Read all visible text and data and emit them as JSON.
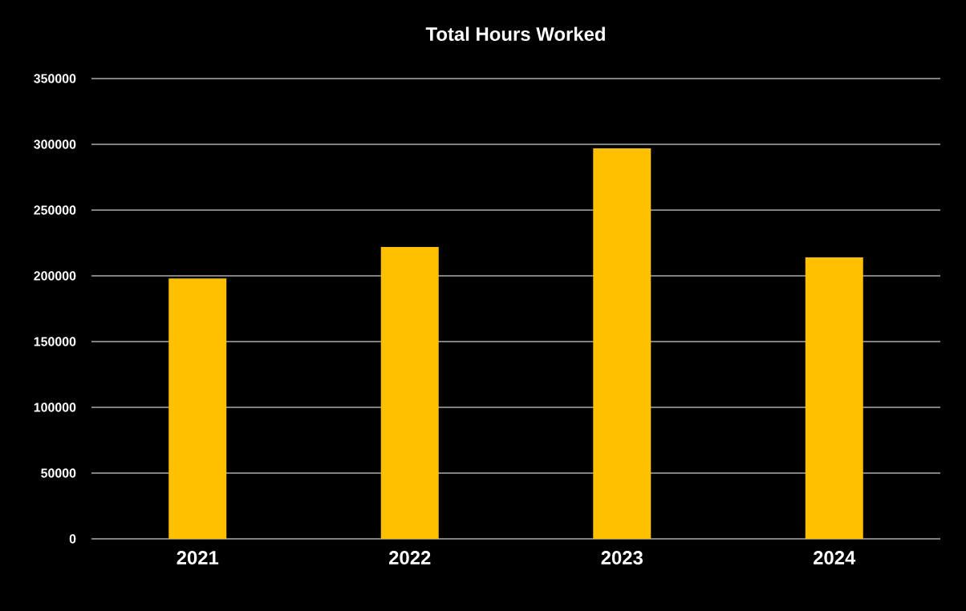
{
  "chart_data": {
    "type": "bar",
    "title": "Total Hours Worked",
    "categories": [
      "2021",
      "2022",
      "2023",
      "2024"
    ],
    "values": [
      198000,
      222000,
      297000,
      214000
    ],
    "color": "#ffc000",
    "ylim": [
      0,
      350000
    ],
    "yticks": [
      0,
      50000,
      100000,
      150000,
      200000,
      250000,
      300000,
      350000
    ],
    "grid": "y"
  }
}
